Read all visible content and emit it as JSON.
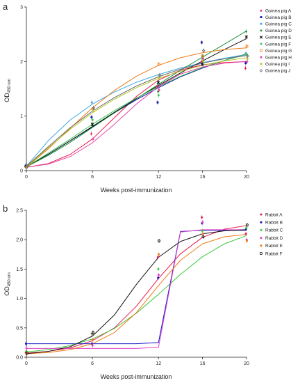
{
  "chart_data": [
    {
      "panel": "a",
      "type": "line",
      "xlabel": "Weeks post-immunization",
      "ylabel": "OD",
      "ylabel_sub": "450 nm",
      "xlim": [
        0,
        20
      ],
      "ylim": [
        0,
        3
      ],
      "x_ticks": [
        0,
        6,
        12,
        16,
        20
      ],
      "y_ticks": [
        0,
        1,
        2,
        3
      ],
      "grid": false,
      "legend_position": "right",
      "series": [
        {
          "name": "Guinea pig A",
          "color": "#e8174b",
          "marker": "triangle",
          "x": [
            0,
            6,
            12,
            16,
            20
          ],
          "y": [
            0.08,
            0.68,
            1.55,
            2.0,
            1.88
          ],
          "fit": [
            0.06,
            0.13,
            0.3,
            0.58,
            0.97,
            1.36,
            1.66,
            1.84,
            1.94,
            1.98,
            2.0
          ]
        },
        {
          "name": "Guinea pig B",
          "color": "#1515a8",
          "marker": "square",
          "x": [
            0,
            6,
            12,
            16,
            20
          ],
          "y": [
            0.08,
            0.98,
            1.25,
            2.35,
            1.97
          ],
          "fit": [
            0.08,
            0.3,
            0.55,
            0.8,
            1.06,
            1.3,
            1.52,
            1.72,
            1.88,
            2.02,
            2.14
          ]
        },
        {
          "name": "Guinea pig C",
          "color": "#3fa9e0",
          "marker": "dot",
          "x": [
            0,
            6,
            12,
            16,
            20
          ],
          "y": [
            0.1,
            1.25,
            1.6,
            1.95,
            2.15
          ],
          "fit": [
            0.08,
            0.55,
            0.93,
            1.22,
            1.44,
            1.62,
            1.76,
            1.88,
            1.98,
            2.06,
            2.13
          ]
        },
        {
          "name": "Guinea pig D",
          "color": "#17913a",
          "marker": "diamond",
          "x": [
            0,
            6,
            12,
            16,
            20
          ],
          "y": [
            0.08,
            0.83,
            1.45,
            2.1,
            2.55
          ],
          "fit": [
            0.07,
            0.28,
            0.52,
            0.79,
            1.06,
            1.32,
            1.58,
            1.84,
            2.08,
            2.32,
            2.56
          ]
        },
        {
          "name": "Guinea pig E",
          "color": "#111111",
          "marker": "cross",
          "x": [
            0,
            6,
            12,
            16,
            20
          ],
          "y": [
            0.08,
            0.85,
            1.62,
            1.95,
            2.45
          ],
          "fit": [
            0.07,
            0.3,
            0.55,
            0.81,
            1.07,
            1.32,
            1.56,
            1.79,
            2.01,
            2.22,
            2.42
          ]
        },
        {
          "name": "Guinea pig F",
          "color": "#3cc85a",
          "marker": "dot",
          "x": [
            0,
            6,
            12,
            16,
            20
          ],
          "y": [
            0.07,
            0.93,
            1.38,
            2.05,
            2.13
          ],
          "fit": [
            0.07,
            0.32,
            0.58,
            0.85,
            1.1,
            1.33,
            1.54,
            1.73,
            1.89,
            2.02,
            2.13
          ]
        },
        {
          "name": "Guinea pig G",
          "color": "#f07a14",
          "marker": "open-square",
          "x": [
            0,
            6,
            12,
            16,
            20
          ],
          "y": [
            0.07,
            1.13,
            1.95,
            2.1,
            2.28
          ],
          "fit": [
            0.06,
            0.4,
            0.78,
            1.15,
            1.47,
            1.73,
            1.93,
            2.07,
            2.16,
            2.22,
            2.25
          ]
        },
        {
          "name": "Guinea pig H",
          "color": "#e04aa6",
          "marker": "dot",
          "x": [
            0,
            6,
            12,
            16,
            20
          ],
          "y": [
            0.08,
            0.58,
            1.48,
            2.05,
            2.0
          ],
          "fit": [
            0.06,
            0.12,
            0.26,
            0.51,
            0.85,
            1.22,
            1.54,
            1.77,
            1.9,
            1.97,
            2.0
          ]
        },
        {
          "name": "Guinea pig I",
          "color": "#b7c428",
          "marker": "dot",
          "x": [
            0,
            6,
            12,
            16,
            20
          ],
          "y": [
            0.07,
            1.1,
            1.7,
            2.0,
            2.05
          ],
          "fit": [
            0.07,
            0.42,
            0.76,
            1.06,
            1.31,
            1.52,
            1.69,
            1.82,
            1.93,
            2.01,
            2.07
          ]
        },
        {
          "name": "Guinea pig J",
          "color": "#666666",
          "marker": "open-diamond",
          "x": [
            0,
            6,
            12,
            16,
            20
          ],
          "y": [
            0.08,
            1.15,
            1.75,
            2.2,
            2.1
          ],
          "fit": [
            0.08,
            0.44,
            0.79,
            1.09,
            1.34,
            1.55,
            1.72,
            1.86,
            1.97,
            2.05,
            2.11
          ]
        }
      ]
    },
    {
      "panel": "b",
      "type": "line",
      "xlabel": "Weeks post-immunization",
      "ylabel": "OD",
      "ylabel_sub": "450 nm",
      "xlim": [
        0,
        20
      ],
      "ylim": [
        0,
        2.5
      ],
      "x_ticks": [
        0,
        6,
        12,
        16,
        20
      ],
      "y_ticks": [
        0.0,
        0.5,
        1.0,
        1.5,
        2.0,
        2.5
      ],
      "grid": false,
      "legend_position": "right",
      "series": [
        {
          "name": "Rabbit A",
          "color": "#e8174b",
          "marker": "dot",
          "x": [
            0,
            6,
            12,
            16,
            20
          ],
          "y": [
            0.08,
            0.4,
            1.7,
            2.38,
            2.1
          ],
          "fit": [
            0.07,
            0.1,
            0.16,
            0.28,
            0.5,
            0.87,
            1.34,
            1.76,
            2.04,
            2.18,
            2.24
          ]
        },
        {
          "name": "Rabbit B",
          "color": "#1515c8",
          "marker": "dot",
          "x": [
            0,
            6,
            12,
            16,
            20
          ],
          "y": [
            0.23,
            0.23,
            1.35,
            2.28,
            2.18
          ],
          "fit": [
            0.23,
            0.23,
            0.23,
            0.23,
            0.23,
            0.23,
            0.25,
            2.14,
            2.16,
            2.16,
            2.16
          ]
        },
        {
          "name": "Rabbit C",
          "color": "#3cc83c",
          "marker": "dot",
          "x": [
            0,
            6,
            12,
            16,
            20
          ],
          "y": [
            0.1,
            0.4,
            1.5,
            2.15,
            2.2
          ],
          "fit": [
            0.09,
            0.13,
            0.2,
            0.31,
            0.49,
            0.75,
            1.07,
            1.41,
            1.71,
            1.93,
            2.07
          ]
        },
        {
          "name": "Rabbit D",
          "color": "#e040c8",
          "marker": "dot",
          "x": [
            0,
            6,
            12,
            16,
            20
          ],
          "y": [
            0.15,
            0.2,
            1.4,
            2.3,
            2.0
          ],
          "fit": [
            0.15,
            0.15,
            0.15,
            0.15,
            0.15,
            0.15,
            0.17,
            2.13,
            2.17,
            2.17,
            2.17
          ]
        },
        {
          "name": "Rabbit E",
          "color": "#f07a14",
          "marker": "dot",
          "x": [
            0,
            6,
            12,
            16,
            20
          ],
          "y": [
            0.06,
            0.3,
            1.75,
            2.1,
            1.98
          ],
          "fit": [
            0.06,
            0.08,
            0.13,
            0.23,
            0.42,
            0.76,
            1.22,
            1.65,
            1.93,
            2.05,
            2.09
          ]
        },
        {
          "name": "Rabbit F",
          "color": "#111111",
          "marker": "open-circle",
          "x": [
            0,
            6,
            12,
            16,
            20
          ],
          "y": [
            0.07,
            0.42,
            1.98,
            2.05,
            2.25
          ],
          "fit": [
            0.06,
            0.1,
            0.18,
            0.36,
            0.72,
            1.24,
            1.7,
            1.97,
            2.1,
            2.15,
            2.17
          ]
        }
      ]
    }
  ]
}
